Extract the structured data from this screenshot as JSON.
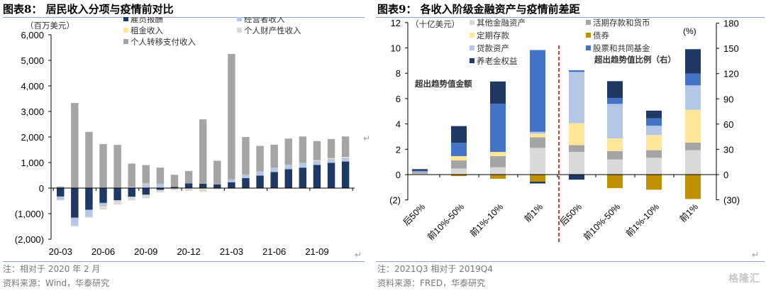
{
  "left": {
    "title": "图表8：  居民收入分项与疫情前对比",
    "note": "注：相对于 2020 年 2 月",
    "source": "资料来源：Wind，华泰研究"
  },
  "right": {
    "title": "图表9：  各收入阶级金融资产与疫情前差距",
    "note": "注：2021Q3 相对于 2019Q4",
    "source": "资料来源：FRED，华泰研究"
  },
  "watermark": "格隆汇",
  "chart_data": [
    {
      "type": "bar",
      "stacked": true,
      "title": "居民收入分项与疫情前对比",
      "ylabel": "（百万美元）",
      "ylim": [
        -2000,
        6000
      ],
      "yticks": [
        6000,
        5000,
        4000,
        3000,
        2000,
        1000,
        0,
        -1000,
        -2000
      ],
      "ytick_labels": [
        "6,000",
        "5,000",
        "4,000",
        "3,000",
        "2,000",
        "1,000",
        "0",
        "(1,000)",
        "(2,000)"
      ],
      "categories": [
        "20-03",
        "20-04",
        "20-05",
        "20-06",
        "20-07",
        "20-08",
        "20-09",
        "20-10",
        "20-11",
        "20-12",
        "21-01",
        "21-02",
        "21-03",
        "21-04",
        "21-05",
        "21-06",
        "21-07",
        "21-08",
        "21-09",
        "21-10",
        "21-11"
      ],
      "xtick_labels": [
        "20-03",
        "20-06",
        "20-09",
        "20-12",
        "21-03",
        "21-06",
        "21-09"
      ],
      "legend_position": "top",
      "series": [
        {
          "name": "雇员报酬",
          "color": "#1f3864",
          "values": [
            -330,
            -1160,
            -850,
            -580,
            -480,
            -340,
            -260,
            -70,
            50,
            180,
            170,
            140,
            230,
            390,
            490,
            630,
            740,
            800,
            910,
            990,
            1040
          ]
        },
        {
          "name": "经营者收入",
          "color": "#b4c7e7",
          "values": [
            -130,
            -310,
            -260,
            -140,
            0,
            50,
            160,
            170,
            0,
            0,
            0,
            0,
            110,
            140,
            160,
            170,
            180,
            190,
            150,
            150,
            150
          ]
        },
        {
          "name": "租金收入",
          "color": "#ffe699",
          "values": [
            0,
            0,
            0,
            -40,
            0,
            0,
            20,
            0,
            0,
            -30,
            -50,
            0,
            0,
            0,
            0,
            0,
            0,
            0,
            30,
            30,
            30
          ]
        },
        {
          "name": "个人财产性收入",
          "color": "#d9d9d9",
          "values": [
            -10,
            -40,
            -50,
            -80,
            -170,
            -140,
            -140,
            -100,
            -80,
            -80,
            -100,
            -50,
            -30,
            -20,
            -20,
            -20,
            -20,
            -20,
            -20,
            -20,
            -20
          ]
        },
        {
          "name": "个人转移支付收入",
          "color": "#a5a5a5",
          "values": [
            60,
            3330,
            2200,
            1720,
            1690,
            910,
            720,
            630,
            470,
            490,
            2520,
            930,
            4910,
            1470,
            1000,
            900,
            1020,
            1030,
            750,
            750,
            800
          ]
        }
      ]
    },
    {
      "type": "bar",
      "stacked": true,
      "title": "各收入阶级金融资产与疫情前差距",
      "ylabel": "（十亿美元）",
      "y2label": "(%)",
      "ylim": [
        -2,
        12
      ],
      "y2lim": [
        -30,
        180
      ],
      "yticks": [
        12,
        10,
        8,
        6,
        4,
        2,
        0,
        -2
      ],
      "ytick_labels": [
        "12",
        "10",
        "8",
        "6",
        "4",
        "2",
        "0",
        "(2)"
      ],
      "y2ticks": [
        180,
        150,
        120,
        90,
        60,
        30,
        0,
        -30
      ],
      "y2tick_labels": [
        "180",
        "150",
        "120",
        "90",
        "60",
        "30",
        "0",
        "(30)"
      ],
      "categories": [
        "后50%",
        "前10%-50%",
        "前1%-10%",
        "前1%",
        "后50%",
        "前10%-50%",
        "前1%-10%",
        "前1%"
      ],
      "axis_of_category": [
        "left",
        "left",
        "left",
        "left",
        "right",
        "right",
        "right",
        "right"
      ],
      "annotations": [
        "超出趋势值金额",
        "超出趋势值比例（右）"
      ],
      "divider": "red dashed line between groups",
      "legend_position": "top",
      "series": [
        {
          "name": "其他金融资产",
          "color": "#d9d9d9",
          "values": [
            0.08,
            0.48,
            0.58,
            2.11,
            27,
            18,
            20,
            29
          ]
        },
        {
          "name": "活期存款和货币",
          "color": "#a5a5a5",
          "values": [
            0.12,
            0.64,
            0.88,
            0.84,
            8,
            10,
            9,
            9
          ]
        },
        {
          "name": "定期存款",
          "color": "#ffe699",
          "values": [
            0,
            0.34,
            0.33,
            0.28,
            26,
            15,
            18,
            39
          ]
        },
        {
          "name": "债券",
          "color": "#bf9000",
          "values": [
            0,
            -0.12,
            -0.33,
            -0.55,
            0,
            -16,
            -18,
            -29
          ]
        },
        {
          "name": "贷款资产",
          "color": "#b4c7e7",
          "values": [
            0.05,
            0,
            0,
            0.15,
            61,
            41,
            11,
            29
          ]
        },
        {
          "name": "股票和共同基金",
          "color": "#4472c4",
          "values": [
            0.05,
            1.06,
            3.81,
            6.45,
            2,
            7,
            9,
            14
          ]
        },
        {
          "name": "养老金权益",
          "color": "#1f3864",
          "values": [
            0.13,
            1.31,
            1.75,
            -0.15,
            -6,
            20,
            9,
            29
          ]
        }
      ]
    }
  ]
}
